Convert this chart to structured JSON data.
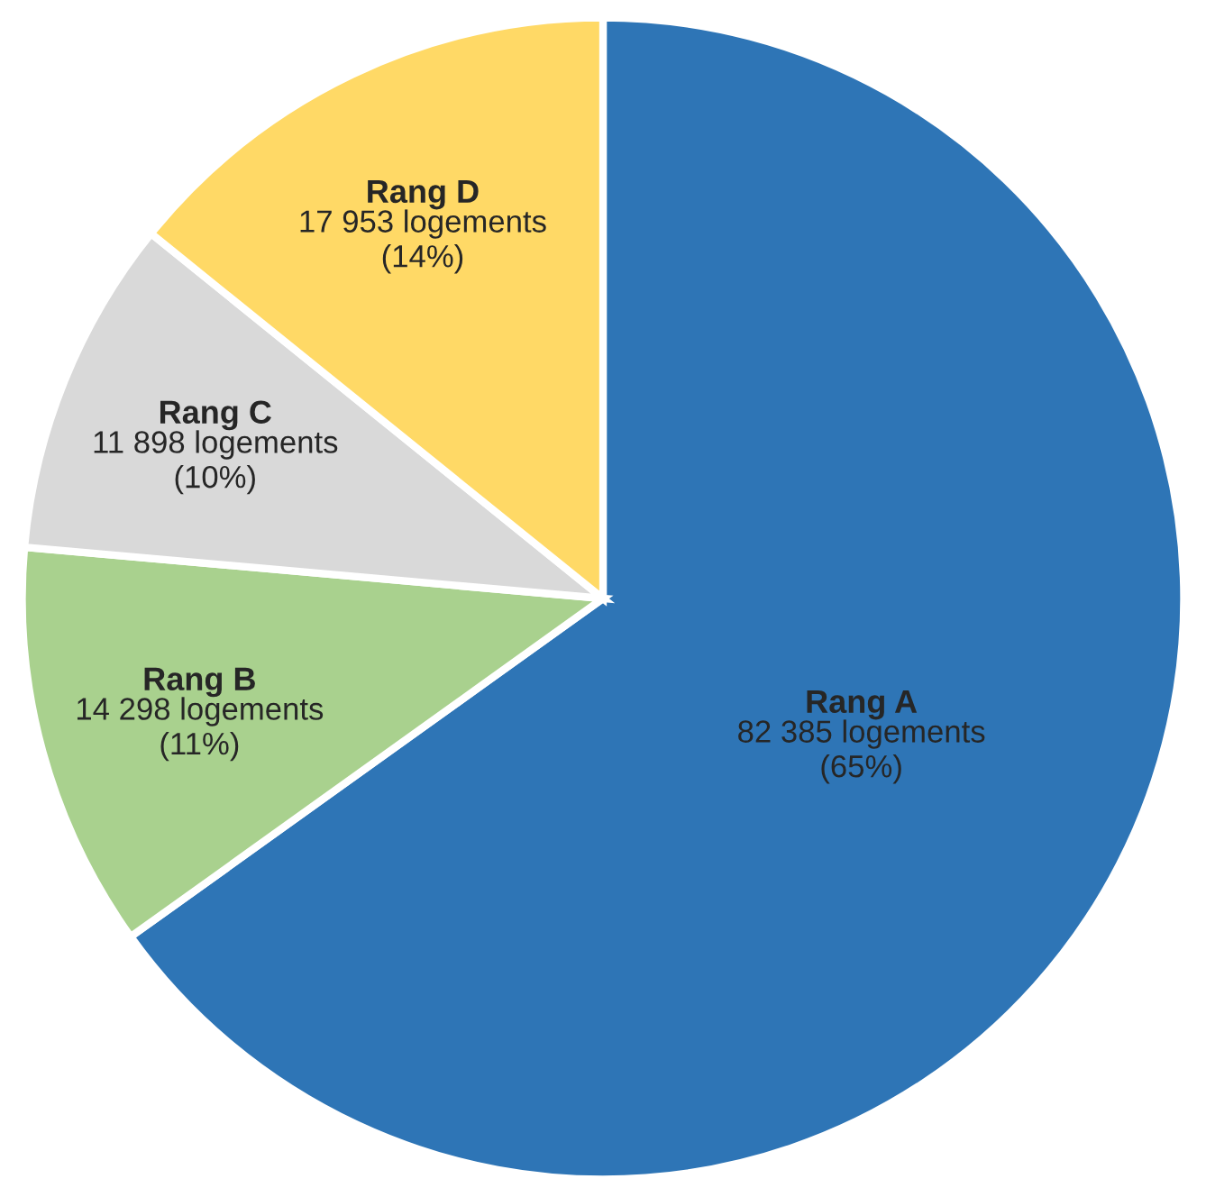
{
  "chart_data": {
    "type": "pie",
    "categories": [
      "Rang A",
      "Rang B",
      "Rang C",
      "Rang D"
    ],
    "values": [
      82385,
      14298,
      11898,
      17953
    ],
    "colors": [
      "#2e75b6",
      "#a9d18e",
      "#d9d9d9",
      "#ffd966"
    ],
    "value_labels": [
      "82 385 logements\n(65%)",
      "14 298 logements\n(11%)",
      "11 898 logements\n(10%)",
      "17 953 logements\n(14%)"
    ]
  }
}
